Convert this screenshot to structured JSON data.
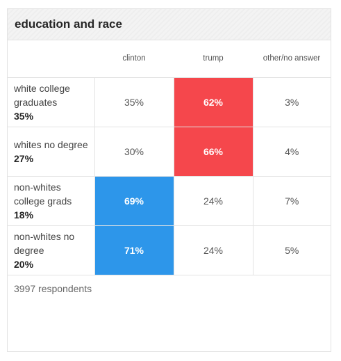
{
  "title": "education and race",
  "colors": {
    "trump_highlight": "#f5474c",
    "clinton_highlight": "#2d96ea"
  },
  "columns": [
    "clinton",
    "trump",
    "other/no answer"
  ],
  "rows": [
    {
      "label": "white college graduates",
      "share": "35%",
      "clinton": "35%",
      "trump": "62%",
      "other": "3%",
      "winner": "trump"
    },
    {
      "label": "whites no degree",
      "share": "27%",
      "clinton": "30%",
      "trump": "66%",
      "other": "4%",
      "winner": "trump"
    },
    {
      "label": "non-whites college grads",
      "share": "18%",
      "clinton": "69%",
      "trump": "24%",
      "other": "7%",
      "winner": "clinton"
    },
    {
      "label": "non-whites no degree",
      "share": "20%",
      "clinton": "71%",
      "trump": "24%",
      "other": "5%",
      "winner": "clinton"
    }
  ],
  "footer": "3997 respondents"
}
